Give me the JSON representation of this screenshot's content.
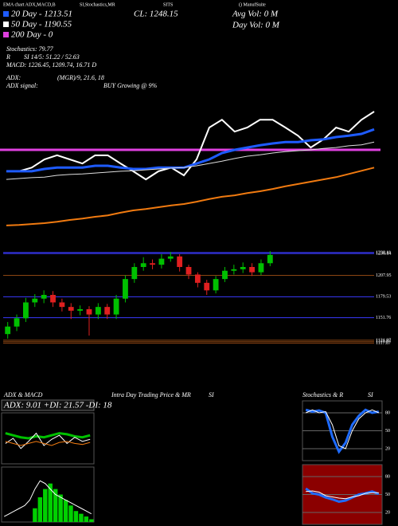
{
  "header": {
    "top": [
      "EMA chart ADX,MACD,B",
      "SI,Stochastics,MR",
      "SITS",
      "() ManufSuite"
    ],
    "legend": [
      {
        "label": "20 Day - 1213.51",
        "color": "#1e5bff"
      },
      {
        "label": "50 Day - 1190.55",
        "color": "#ffffff"
      },
      {
        "label": "200 Day - 0",
        "color": "#e040e0"
      }
    ],
    "lines": [
      "Stochastics: 79.77",
      "R",
      "SI 14/5: 51.22 / 52.63",
      "MACD: 1226.45, 1209.74, 16.71 D",
      "ADX:",
      "(MGR)/9, 21.6, 18",
      "ADX signal:",
      "BUY Growing @ 9%"
    ],
    "cl": "CL: 1248.15",
    "avg_vol": "Avg Vol: 0   M",
    "day_vol": "Day Vol: 0   M",
    "panels": [
      "ADX & MACD",
      "ADX: 9.01 +DI: 21.57 -DI: 18",
      "Intra Day Trading Price & MR",
      "SI",
      "Stochastics & R",
      "SI"
    ]
  },
  "chart_data": [
    {
      "type": "line",
      "ylim": [
        970,
        1495
      ],
      "hline": {
        "value": 1166,
        "color": "#e040e0"
      },
      "series": [
        {
          "color": "#ffffff",
          "width": 2,
          "values": [
            1119,
            1119,
            1127,
            1145,
            1154,
            1145,
            1136,
            1154,
            1154,
            1136,
            1119,
            1101,
            1119,
            1127,
            1110,
            1145,
            1215,
            1232,
            1206,
            1215,
            1232,
            1232,
            1215,
            1197,
            1171,
            1189,
            1215,
            1206,
            1232,
            1250
          ]
        },
        {
          "color": "#1e5bff",
          "width": 3,
          "values": [
            1119,
            1119,
            1119,
            1124,
            1127,
            1127,
            1127,
            1131,
            1131,
            1127,
            1124,
            1124,
            1127,
            1127,
            1127,
            1136,
            1145,
            1159,
            1166,
            1171,
            1176,
            1180,
            1183,
            1183,
            1187,
            1189,
            1194,
            1197,
            1201,
            1211
          ]
        },
        {
          "color": "#dddddd",
          "width": 1,
          "values": [
            1101,
            1103,
            1105,
            1106,
            1110,
            1112,
            1113,
            1115,
            1117,
            1119,
            1120,
            1122,
            1124,
            1126,
            1127,
            1131,
            1136,
            1141,
            1147,
            1152,
            1155,
            1159,
            1162,
            1164,
            1166,
            1169,
            1171,
            1175,
            1177,
            1183
          ]
        },
        {
          "color": "#f07a10",
          "width": 2,
          "values": [
            1000,
            1001,
            1003,
            1005,
            1008,
            1012,
            1015,
            1019,
            1022,
            1028,
            1033,
            1036,
            1040,
            1044,
            1047,
            1052,
            1058,
            1063,
            1066,
            1071,
            1075,
            1080,
            1086,
            1091,
            1096,
            1101,
            1106,
            1113,
            1120,
            1127
          ]
        }
      ]
    },
    {
      "type": "candlestick",
      "ylim": [
        1108,
        1256
      ],
      "yticks": [
        1238.11,
        1236.84,
        1207.95,
        1179.53,
        1151.76,
        1121.87,
        1119.87,
        1117.87
      ],
      "level_colors": [
        "#3a3aff",
        "#3a3aff",
        "#8b4513",
        "#3a3aff",
        "#3a3aff",
        "#8b4513",
        "#8b4513",
        "#8b4513"
      ],
      "up_color": "#00c000",
      "down_color": "#e02020",
      "open": [
        1130,
        1140,
        1151,
        1172,
        1177,
        1182,
        1172,
        1166,
        1161,
        1163,
        1156,
        1166,
        1156,
        1177,
        1203,
        1219,
        1224,
        1222,
        1230,
        1233,
        1219,
        1209,
        1198,
        1188,
        1203,
        1214,
        1216,
        1219,
        1212,
        1224
      ],
      "high": [
        1146,
        1156,
        1178,
        1183,
        1188,
        1187,
        1177,
        1171,
        1168,
        1167,
        1171,
        1170,
        1182,
        1208,
        1224,
        1232,
        1229,
        1236,
        1239,
        1236,
        1222,
        1212,
        1202,
        1207,
        1219,
        1222,
        1225,
        1224,
        1229,
        1240
      ],
      "low": [
        1124,
        1134,
        1146,
        1166,
        1171,
        1166,
        1160,
        1150,
        1155,
        1128,
        1150,
        1150,
        1150,
        1172,
        1198,
        1214,
        1216,
        1217,
        1226,
        1213,
        1203,
        1192,
        1182,
        1184,
        1199,
        1209,
        1211,
        1207,
        1208,
        1220
      ],
      "close": [
        1140,
        1151,
        1172,
        1177,
        1182,
        1172,
        1166,
        1161,
        1163,
        1156,
        1166,
        1156,
        1177,
        1203,
        1219,
        1224,
        1222,
        1230,
        1233,
        1219,
        1209,
        1198,
        1188,
        1203,
        1214,
        1216,
        1219,
        1212,
        1224,
        1235
      ]
    },
    {
      "type": "line",
      "ylim": [
        0,
        50
      ],
      "series": [
        {
          "color": "#00c000",
          "width": 3,
          "values": [
            30,
            28,
            26,
            25,
            27,
            26,
            28,
            30,
            29,
            27,
            26,
            28
          ]
        },
        {
          "color": "#ffffff",
          "width": 1,
          "values": [
            20,
            25,
            15,
            22,
            30,
            18,
            24,
            28,
            20,
            26,
            22,
            24
          ]
        },
        {
          "color": "#f07a10",
          "width": 1,
          "values": [
            22,
            20,
            18,
            20,
            22,
            20,
            18,
            21,
            22,
            20,
            19,
            21
          ]
        }
      ]
    },
    {
      "type": "bar",
      "ylim": [
        0,
        20
      ],
      "color": "#00d000",
      "values": [
        0,
        0,
        0,
        0,
        0,
        0,
        5,
        9,
        12,
        14,
        12,
        10,
        8,
        6,
        4,
        3,
        2,
        1
      ],
      "series": [
        {
          "color": "#ffffff",
          "width": 1,
          "values": [
            2,
            3,
            4,
            5,
            6,
            8,
            12,
            15,
            14,
            12,
            10,
            9,
            8,
            7,
            6,
            5,
            4,
            3
          ]
        }
      ]
    },
    {
      "type": "line",
      "ylim": [
        0,
        100
      ],
      "yticks": [
        20,
        50,
        80
      ],
      "series": [
        {
          "color": "#1e6bff",
          "width": 3,
          "values": [
            85,
            82,
            84,
            80,
            40,
            15,
            30,
            60,
            75,
            85,
            80,
            82
          ]
        },
        {
          "color": "#ffffff",
          "width": 1,
          "values": [
            80,
            85,
            80,
            82,
            60,
            25,
            20,
            50,
            70,
            80,
            85,
            80
          ]
        }
      ]
    },
    {
      "type": "line",
      "ylim": [
        0,
        100
      ],
      "yticks": [
        20,
        50,
        80
      ],
      "background": "#8b0000",
      "series": [
        {
          "color": "#1e6bff",
          "width": 3,
          "values": [
            60,
            52,
            50,
            45,
            42,
            38,
            40,
            45,
            50,
            52,
            55,
            51
          ]
        },
        {
          "color": "#ffffff",
          "width": 1,
          "values": [
            55,
            56,
            54,
            48,
            46,
            44,
            43,
            46,
            48,
            52,
            53,
            53
          ]
        }
      ]
    }
  ]
}
